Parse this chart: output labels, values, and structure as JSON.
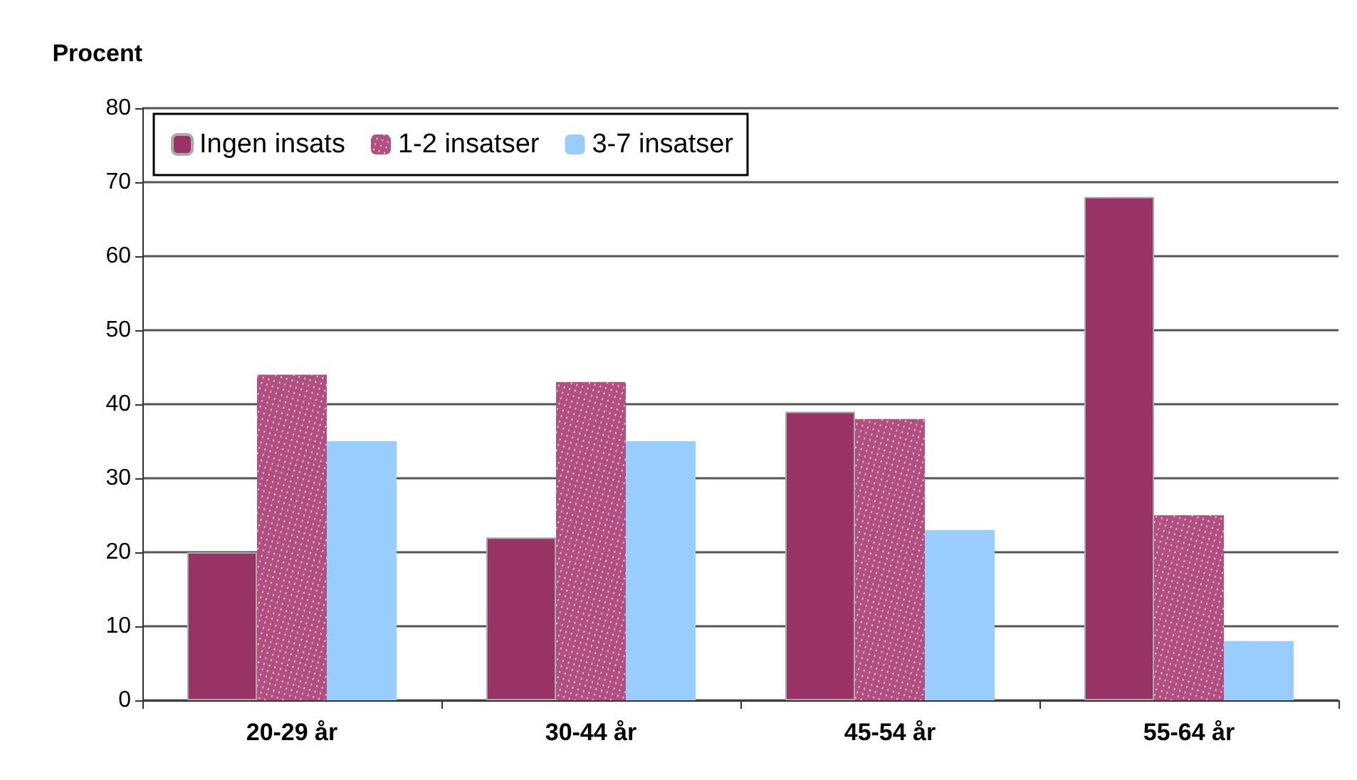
{
  "chart_data": {
    "type": "bar",
    "ylabel": "Procent",
    "categories": [
      "20-29 år",
      "30-44 år",
      "45-54 år",
      "55-64 år"
    ],
    "series": [
      {
        "name": "Ingen insats",
        "color": "#993366",
        "values": [
          20,
          22,
          39,
          68
        ]
      },
      {
        "name": "1-2 insatser",
        "color": "#b04f80",
        "values": [
          44,
          43,
          38,
          25
        ]
      },
      {
        "name": "3-7 insatser",
        "color": "#99ccff",
        "values": [
          35,
          35,
          23,
          8
        ]
      }
    ],
    "ylim": [
      0,
      80
    ],
    "yticks": [
      0,
      10,
      20,
      30,
      40,
      50,
      60,
      70,
      80
    ],
    "grid": "y",
    "legend": "top left"
  }
}
